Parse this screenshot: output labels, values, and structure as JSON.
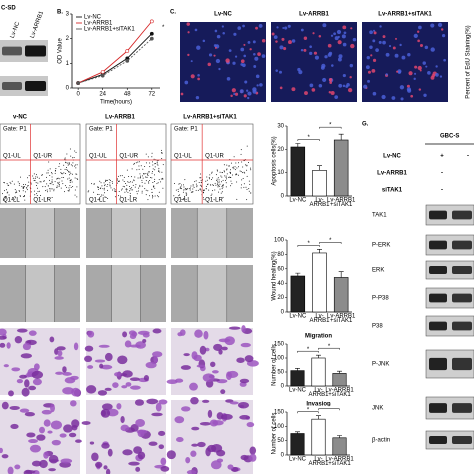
{
  "panel_a": {
    "label": "C-SD",
    "lanes": [
      "Lv-NC",
      "Lv-ARRB1"
    ]
  },
  "panel_b_label": "B.",
  "panel_c": {
    "label": "C.",
    "columns": [
      "Lv-NC",
      "Lv-ARRB1",
      "Lv-ARRB1+siTAK1"
    ],
    "y_label": "Percent of EdU Staining(%)"
  },
  "row_headers": [
    "v-NC",
    "Lv-ARRB1",
    "Lv-ARRB1+siTAK1"
  ],
  "flow": {
    "gate": "Gate: P1",
    "quadrants": [
      "Q1-UL",
      "Q1-UR",
      "Q1-LL",
      "Q1-LR"
    ]
  },
  "panel_g": {
    "label": "G.",
    "title": "GBC-S",
    "conditions": [
      {
        "name": "Lv-NC",
        "marks": [
          "+",
          "-"
        ]
      },
      {
        "name": "Lv-ARRB1",
        "marks": [
          "-"
        ]
      },
      {
        "name": "siTAK1",
        "marks": [
          "-"
        ]
      }
    ],
    "proteins": [
      "TAK1",
      "P-ERK",
      "ERK",
      "P-P38",
      "P38",
      "P-JNK",
      "JNK",
      "β-actin"
    ]
  },
  "chart_data": [
    {
      "type": "line",
      "y_label": "OD Value",
      "x_label": "Time(hours)",
      "x": [
        0,
        24,
        48,
        72
      ],
      "xlim": [
        -6,
        80
      ],
      "xticks": [
        0,
        24,
        48,
        72
      ],
      "ylim": [
        0,
        3
      ],
      "yticks": [
        0,
        1,
        2,
        3
      ],
      "series": [
        {
          "name": "Lv-NC",
          "color": "#111111",
          "values": [
            0.2,
            0.55,
            1.2,
            2.2
          ]
        },
        {
          "name": "Lv-ARRB1",
          "color": "#d62728",
          "values": [
            0.2,
            0.65,
            1.5,
            2.7
          ]
        },
        {
          "name": "Lv-ARRB1+siTAK1",
          "color": "#555555",
          "values": [
            0.2,
            0.5,
            1.1,
            2.0
          ]
        }
      ],
      "annotation": "*"
    },
    {
      "type": "bar",
      "y_label": "Apoptosis cells(%)",
      "categories": [
        [
          "Lv-NC"
        ],
        [
          "Lv-",
          "ARRB1"
        ],
        [
          "Lv-ARRB1",
          "+siTAK1"
        ]
      ],
      "values": [
        21,
        11,
        24
      ],
      "errors": [
        1.5,
        2,
        2.5
      ],
      "colors": [
        "#222222",
        "#ffffff",
        "#8c8c8c"
      ],
      "ylim": [
        0,
        30
      ],
      "yticks": [
        0,
        10,
        20,
        30
      ],
      "annotations": [
        "*",
        "*"
      ]
    },
    {
      "type": "bar",
      "y_label": "Wound healing(%)",
      "categories": [
        [
          "Lv-NC"
        ],
        [
          "Lv-",
          "ARRB1"
        ],
        [
          "Lv-ARRB1",
          "+siTAK1"
        ]
      ],
      "values": [
        50,
        82,
        48
      ],
      "errors": [
        4,
        5,
        8
      ],
      "colors": [
        "#222222",
        "#ffffff",
        "#8c8c8c"
      ],
      "ylim": [
        0,
        100
      ],
      "yticks": [
        0,
        20,
        40,
        60,
        80,
        100
      ],
      "annotations": [
        "*",
        "*"
      ]
    },
    {
      "type": "bar",
      "title": "Migration",
      "y_label": "Number of cells",
      "categories": [
        [
          "Lv-NC"
        ],
        [
          "Lv-",
          "ARRB1"
        ],
        [
          "Lv-ARRB1",
          "+siTAK1"
        ]
      ],
      "values": [
        55,
        100,
        45
      ],
      "errors": [
        8,
        10,
        8
      ],
      "colors": [
        "#222222",
        "#ffffff",
        "#8c8c8c"
      ],
      "ylim": [
        0,
        150
      ],
      "yticks": [
        0,
        50,
        100,
        150
      ],
      "annotations": [
        "*",
        "*"
      ]
    },
    {
      "type": "bar",
      "title": "Invasion",
      "y_label": "Number of cells",
      "categories": [
        [
          "Lv-NC"
        ],
        [
          "Lv-",
          "ARRB1"
        ],
        [
          "Lv-ARRB1",
          "+siTAK1"
        ]
      ],
      "values": [
        75,
        125,
        60
      ],
      "errors": [
        6,
        12,
        8
      ],
      "colors": [
        "#222222",
        "#ffffff",
        "#8c8c8c"
      ],
      "ylim": [
        0,
        150
      ],
      "yticks": [
        0,
        50,
        100,
        150
      ],
      "annotations": [
        "*",
        "*"
      ]
    }
  ]
}
